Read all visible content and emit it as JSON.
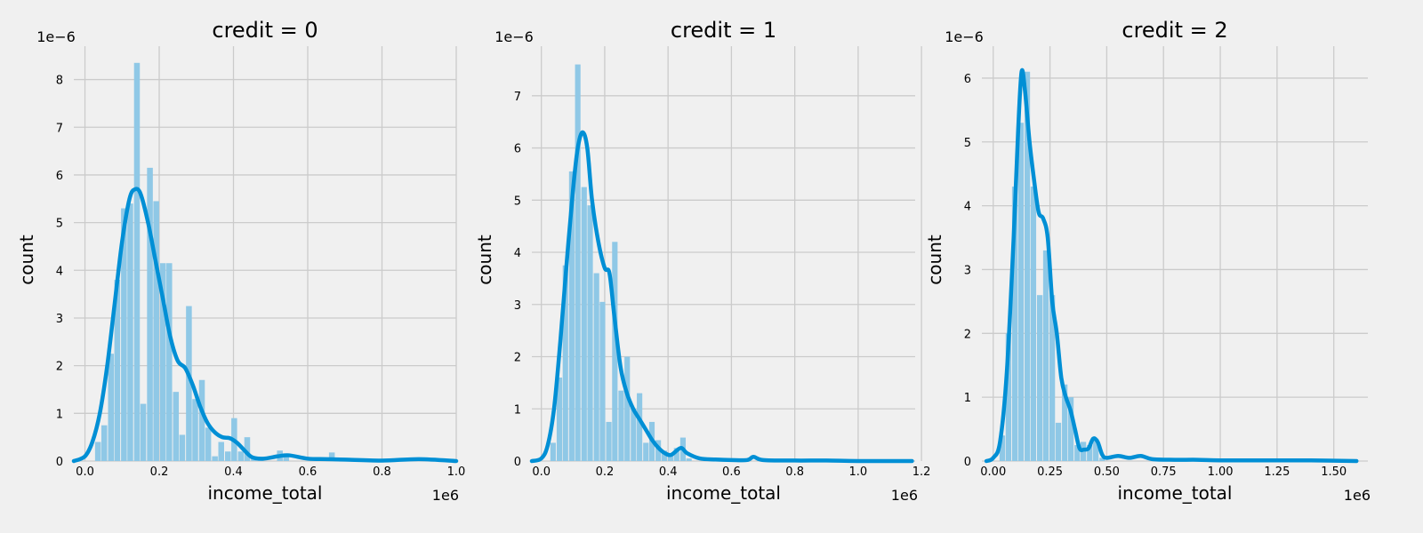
{
  "colors": {
    "background": "#f0f0f0",
    "grid": "#cbcbcb",
    "bar": "#8fc8e6",
    "kde": "#008fd5"
  },
  "chart_data": [
    {
      "type": "histogram+kde",
      "title": "credit = 0",
      "xlabel": "income_total",
      "ylabel": "count",
      "x_offset_label": "1e6",
      "y_offset_label": "1e−6",
      "xlim": [
        -0.03,
        1.0
      ],
      "ylim": [
        0,
        8.7
      ],
      "xticks": [
        0.0,
        0.2,
        0.4,
        0.6,
        0.8,
        1.0
      ],
      "xtick_labels": [
        "0.0",
        "0.2",
        "0.4",
        "0.6",
        "0.8",
        "1.0"
      ],
      "yticks": [
        0,
        1,
        2,
        3,
        4,
        5,
        6,
        7,
        8
      ],
      "ytick_labels": [
        "0",
        "1",
        "2",
        "3",
        "4",
        "5",
        "6",
        "7",
        "8"
      ],
      "grid": true,
      "bar_width": 0.0175,
      "bars": [
        [
          0.035,
          0.4
        ],
        [
          0.052,
          0.75
        ],
        [
          0.07,
          2.25
        ],
        [
          0.087,
          3.8
        ],
        [
          0.105,
          5.3
        ],
        [
          0.122,
          5.4
        ],
        [
          0.14,
          8.35
        ],
        [
          0.157,
          1.2
        ],
        [
          0.175,
          6.15
        ],
        [
          0.192,
          5.45
        ],
        [
          0.21,
          4.15
        ],
        [
          0.227,
          4.15
        ],
        [
          0.245,
          1.45
        ],
        [
          0.262,
          0.55
        ],
        [
          0.28,
          3.25
        ],
        [
          0.297,
          1.3
        ],
        [
          0.315,
          1.7
        ],
        [
          0.332,
          0.7
        ],
        [
          0.35,
          0.1
        ],
        [
          0.367,
          0.4
        ],
        [
          0.385,
          0.2
        ],
        [
          0.402,
          0.9
        ],
        [
          0.42,
          0.2
        ],
        [
          0.437,
          0.5
        ],
        [
          0.455,
          0.1
        ],
        [
          0.472,
          0.05
        ],
        [
          0.525,
          0.22
        ],
        [
          0.542,
          0.1
        ],
        [
          0.665,
          0.18
        ],
        [
          0.9,
          0.05
        ]
      ],
      "kde": [
        [
          -0.03,
          0.0
        ],
        [
          0.0,
          0.1
        ],
        [
          0.02,
          0.4
        ],
        [
          0.04,
          1.0
        ],
        [
          0.06,
          2.0
        ],
        [
          0.08,
          3.3
        ],
        [
          0.1,
          4.6
        ],
        [
          0.12,
          5.5
        ],
        [
          0.135,
          5.7
        ],
        [
          0.15,
          5.6
        ],
        [
          0.17,
          5.0
        ],
        [
          0.19,
          4.2
        ],
        [
          0.21,
          3.4
        ],
        [
          0.23,
          2.6
        ],
        [
          0.25,
          2.1
        ],
        [
          0.27,
          1.95
        ],
        [
          0.29,
          1.6
        ],
        [
          0.31,
          1.15
        ],
        [
          0.33,
          0.8
        ],
        [
          0.35,
          0.6
        ],
        [
          0.37,
          0.5
        ],
        [
          0.39,
          0.48
        ],
        [
          0.41,
          0.38
        ],
        [
          0.43,
          0.22
        ],
        [
          0.45,
          0.08
        ],
        [
          0.48,
          0.05
        ],
        [
          0.52,
          0.1
        ],
        [
          0.55,
          0.12
        ],
        [
          0.6,
          0.05
        ],
        [
          0.65,
          0.04
        ],
        [
          0.7,
          0.03
        ],
        [
          0.8,
          0.01
        ],
        [
          0.9,
          0.04
        ],
        [
          1.0,
          0.0
        ]
      ]
    },
    {
      "type": "histogram+kde",
      "title": "credit = 1",
      "xlabel": "income_total",
      "ylabel": "count",
      "x_offset_label": "1e6",
      "y_offset_label": "1e−6",
      "xlim": [
        -0.03,
        1.18
      ],
      "ylim": [
        0,
        7.95
      ],
      "xticks": [
        0.0,
        0.2,
        0.4,
        0.6,
        0.8,
        1.0,
        1.2
      ],
      "xtick_labels": [
        "0.0",
        "0.2",
        "0.4",
        "0.6",
        "0.8",
        "1.0",
        "1.2"
      ],
      "yticks": [
        0,
        1,
        2,
        3,
        4,
        5,
        6,
        7
      ],
      "ytick_labels": [
        "0",
        "1",
        "2",
        "3",
        "4",
        "5",
        "6",
        "7"
      ],
      "grid": true,
      "bar_width": 0.0195,
      "bars": [
        [
          0.037,
          0.35
        ],
        [
          0.057,
          1.6
        ],
        [
          0.076,
          3.75
        ],
        [
          0.096,
          5.55
        ],
        [
          0.115,
          7.6
        ],
        [
          0.135,
          5.25
        ],
        [
          0.154,
          4.9
        ],
        [
          0.174,
          3.6
        ],
        [
          0.193,
          3.05
        ],
        [
          0.213,
          0.75
        ],
        [
          0.232,
          4.2
        ],
        [
          0.252,
          1.35
        ],
        [
          0.271,
          2.0
        ],
        [
          0.291,
          1.0
        ],
        [
          0.31,
          1.3
        ],
        [
          0.33,
          0.35
        ],
        [
          0.349,
          0.75
        ],
        [
          0.369,
          0.4
        ],
        [
          0.388,
          0.2
        ],
        [
          0.408,
          0.1
        ],
        [
          0.427,
          0.25
        ],
        [
          0.447,
          0.45
        ],
        [
          0.466,
          0.05
        ]
      ],
      "kde": [
        [
          -0.03,
          0.0
        ],
        [
          0.0,
          0.05
        ],
        [
          0.02,
          0.3
        ],
        [
          0.04,
          1.0
        ],
        [
          0.06,
          2.3
        ],
        [
          0.08,
          3.8
        ],
        [
          0.1,
          5.2
        ],
        [
          0.115,
          6.0
        ],
        [
          0.13,
          6.3
        ],
        [
          0.145,
          6.0
        ],
        [
          0.16,
          5.0
        ],
        [
          0.18,
          4.2
        ],
        [
          0.2,
          3.7
        ],
        [
          0.215,
          3.6
        ],
        [
          0.23,
          2.8
        ],
        [
          0.25,
          1.8
        ],
        [
          0.27,
          1.3
        ],
        [
          0.29,
          1.0
        ],
        [
          0.31,
          0.8
        ],
        [
          0.33,
          0.6
        ],
        [
          0.35,
          0.4
        ],
        [
          0.37,
          0.25
        ],
        [
          0.39,
          0.15
        ],
        [
          0.41,
          0.12
        ],
        [
          0.44,
          0.25
        ],
        [
          0.46,
          0.15
        ],
        [
          0.5,
          0.05
        ],
        [
          0.55,
          0.03
        ],
        [
          0.6,
          0.02
        ],
        [
          0.65,
          0.02
        ],
        [
          0.67,
          0.08
        ],
        [
          0.7,
          0.02
        ],
        [
          0.8,
          0.01
        ],
        [
          0.9,
          0.01
        ],
        [
          1.0,
          0.0
        ],
        [
          1.17,
          0.0
        ]
      ]
    },
    {
      "type": "histogram+kde",
      "title": "credit = 2",
      "xlabel": "income_total",
      "ylabel": "count",
      "x_offset_label": "1e6",
      "y_offset_label": "1e−6",
      "xlim": [
        -0.05,
        1.65
      ],
      "ylim": [
        0,
        6.5
      ],
      "xticks": [
        0.0,
        0.25,
        0.5,
        0.75,
        1.0,
        1.25,
        1.5
      ],
      "xtick_labels": [
        "0.00",
        "0.25",
        "0.50",
        "0.75",
        "1.00",
        "1.25",
        "1.50"
      ],
      "yticks": [
        0,
        1,
        2,
        3,
        4,
        5,
        6
      ],
      "ytick_labels": [
        "0",
        "1",
        "2",
        "3",
        "4",
        "5",
        "6"
      ],
      "grid": true,
      "bar_width": 0.0275,
      "bars": [
        [
          0.04,
          0.4
        ],
        [
          0.067,
          2.0
        ],
        [
          0.095,
          4.3
        ],
        [
          0.122,
          5.3
        ],
        [
          0.15,
          6.1
        ],
        [
          0.177,
          4.3
        ],
        [
          0.205,
          2.6
        ],
        [
          0.232,
          3.3
        ],
        [
          0.26,
          2.6
        ],
        [
          0.287,
          0.6
        ],
        [
          0.315,
          1.2
        ],
        [
          0.342,
          1.0
        ],
        [
          0.37,
          0.25
        ],
        [
          0.397,
          0.3
        ],
        [
          0.425,
          0.25
        ],
        [
          0.452,
          0.35
        ],
        [
          0.48,
          0.05
        ]
      ],
      "kde": [
        [
          -0.03,
          0.0
        ],
        [
          0.0,
          0.05
        ],
        [
          0.03,
          0.3
        ],
        [
          0.06,
          1.4
        ],
        [
          0.09,
          3.5
        ],
        [
          0.11,
          5.2
        ],
        [
          0.125,
          6.1
        ],
        [
          0.14,
          5.8
        ],
        [
          0.16,
          5.0
        ],
        [
          0.18,
          4.4
        ],
        [
          0.2,
          3.9
        ],
        [
          0.22,
          3.8
        ],
        [
          0.24,
          3.5
        ],
        [
          0.26,
          2.5
        ],
        [
          0.28,
          2.0
        ],
        [
          0.3,
          1.3
        ],
        [
          0.32,
          1.0
        ],
        [
          0.34,
          0.8
        ],
        [
          0.36,
          0.5
        ],
        [
          0.38,
          0.2
        ],
        [
          0.4,
          0.18
        ],
        [
          0.42,
          0.2
        ],
        [
          0.44,
          0.35
        ],
        [
          0.46,
          0.3
        ],
        [
          0.48,
          0.1
        ],
        [
          0.5,
          0.05
        ],
        [
          0.55,
          0.08
        ],
        [
          0.6,
          0.05
        ],
        [
          0.65,
          0.08
        ],
        [
          0.7,
          0.03
        ],
        [
          0.8,
          0.02
        ],
        [
          0.9,
          0.02
        ],
        [
          1.0,
          0.01
        ],
        [
          1.2,
          0.01
        ],
        [
          1.4,
          0.01
        ],
        [
          1.6,
          0.0
        ]
      ]
    }
  ]
}
